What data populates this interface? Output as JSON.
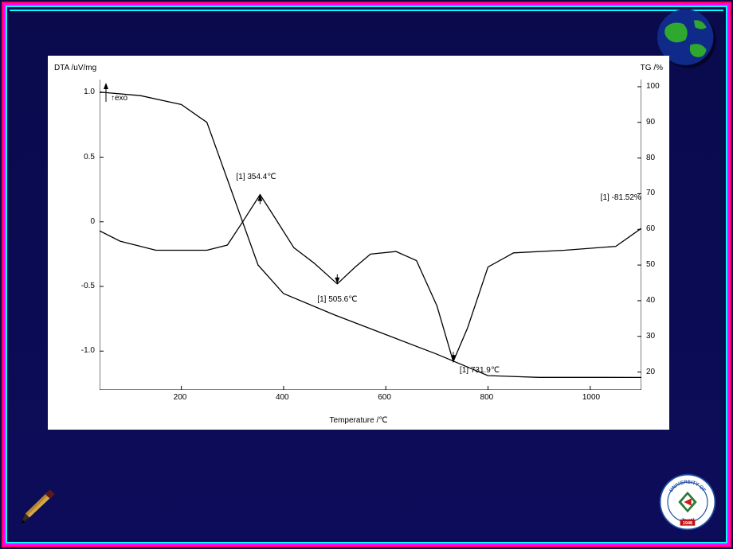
{
  "slide": {
    "outer_bg": "#0a0a4a",
    "neon_outer": "#ff00ff",
    "neon_inner": "#00ffff",
    "neon_accent": "#ff0066"
  },
  "chart": {
    "type": "line",
    "background_color": "#ffffff",
    "line_color": "#000000",
    "line_width": 1.2,
    "x_axis": {
      "label": "Temperature /℃",
      "min": 40,
      "max": 1100,
      "ticks": [
        200,
        400,
        600,
        800,
        1000
      ],
      "label_fontsize": 10
    },
    "y_left": {
      "label": "DTA /uV/mg",
      "min": -1.3,
      "max": 1.1,
      "ticks": [
        -1.0,
        -0.5,
        0,
        0.5,
        1.0
      ],
      "label_fontsize": 10
    },
    "y_right": {
      "label": "TG /%",
      "min": 15,
      "max": 102,
      "ticks": [
        20,
        30,
        40,
        50,
        60,
        70,
        80,
        90,
        100
      ],
      "label_fontsize": 10
    },
    "exo_label": "↑exo",
    "dta_curve": [
      [
        40,
        -0.07
      ],
      [
        80,
        -0.15
      ],
      [
        150,
        -0.22
      ],
      [
        250,
        -0.22
      ],
      [
        290,
        -0.18
      ],
      [
        320,
        0.0
      ],
      [
        354,
        0.21
      ],
      [
        380,
        0.05
      ],
      [
        420,
        -0.2
      ],
      [
        460,
        -0.32
      ],
      [
        505,
        -0.48
      ],
      [
        540,
        -0.35
      ],
      [
        570,
        -0.25
      ],
      [
        620,
        -0.23
      ],
      [
        660,
        -0.3
      ],
      [
        700,
        -0.65
      ],
      [
        732,
        -1.08
      ],
      [
        760,
        -0.82
      ],
      [
        800,
        -0.35
      ],
      [
        850,
        -0.24
      ],
      [
        950,
        -0.22
      ],
      [
        1050,
        -0.19
      ],
      [
        1100,
        -0.05
      ]
    ],
    "tg_curve": [
      [
        40,
        98.5
      ],
      [
        120,
        97.5
      ],
      [
        200,
        95.0
      ],
      [
        250,
        90.0
      ],
      [
        300,
        70.0
      ],
      [
        350,
        50.0
      ],
      [
        400,
        42.0
      ],
      [
        500,
        36.0
      ],
      [
        600,
        30.5
      ],
      [
        700,
        25.0
      ],
      [
        800,
        19.0
      ],
      [
        900,
        18.5
      ],
      [
        1000,
        18.5
      ],
      [
        1100,
        18.48
      ]
    ],
    "annotations": {
      "a1": "[1] 354.4℃",
      "a2": "[1] 505.6℃",
      "a3": "[1] 731.9℃",
      "a4": "[1] -81.52%"
    }
  },
  "logo": {
    "text_top": "UNIVERSITY OF",
    "text_bottom": "JINAN",
    "year": "1948",
    "ring_outer": "#1a4fa3",
    "ring_inner": "#ffffff",
    "center": "#2a7a3a",
    "arrow": "#d01818",
    "banner": "#c01010"
  },
  "globe": {
    "land": "#2fa82f",
    "ocean": "#102a8a",
    "shadow": "#000000"
  },
  "pencil": {
    "body1": "#d4a84a",
    "body2": "#b8862a",
    "tip": "#3a2a10",
    "lead": "#000000"
  }
}
